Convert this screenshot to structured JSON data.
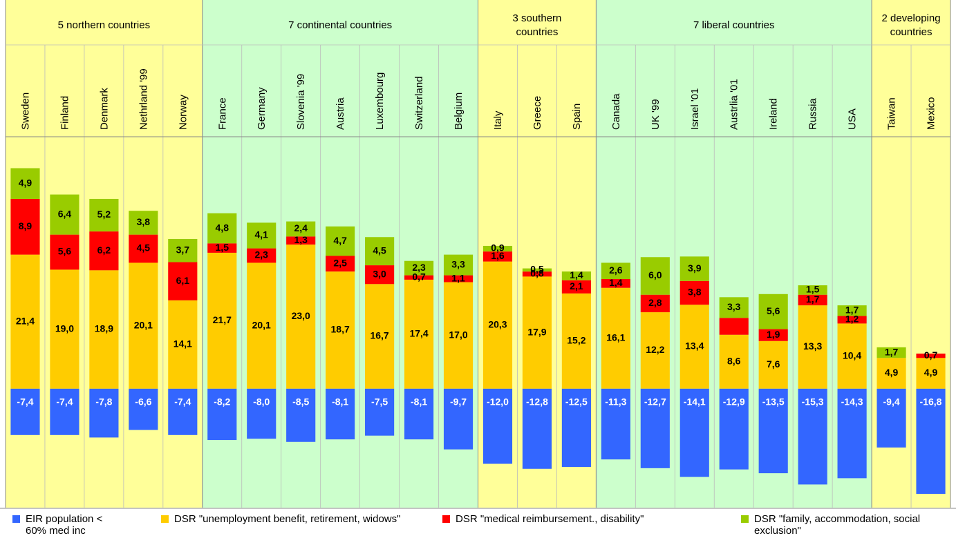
{
  "chart_data": {
    "type": "stacked-bar",
    "categories": [
      "Sweden",
      "Finland",
      "Denmark",
      "Nethrland '99",
      "Norway",
      "France",
      "Germany",
      "Slovenia '99",
      "Austria",
      "Luxembourg",
      "Switzerland",
      "Belgium",
      "Italy",
      "Greece",
      "Spain",
      "Canada",
      "UK '99",
      "Israel '01",
      "Austrlia '01",
      "Ireland",
      "Russia",
      "USA",
      "Taiwan",
      "Mexico"
    ],
    "groups": [
      {
        "label": "5 northern countries",
        "size": 5,
        "color": "#ffff99"
      },
      {
        "label": "7 continental countries",
        "size": 7,
        "color": "#ccffcc"
      },
      {
        "label": "3 southern\ncountries",
        "size": 3,
        "color": "#ffff99"
      },
      {
        "label": "7 liberal countries",
        "size": 7,
        "color": "#ccffcc"
      },
      {
        "label": "2 developing\ncountries",
        "size": 2,
        "color": "#ffff99"
      }
    ],
    "series": [
      {
        "name": "EIR  population < 60% med inc",
        "color": "#3366ff",
        "values": [
          -7.4,
          -7.4,
          -7.8,
          -6.6,
          -7.4,
          -8.2,
          -8.0,
          -8.5,
          -8.1,
          -7.5,
          -8.1,
          -9.7,
          -12.0,
          -12.8,
          -12.5,
          -11.3,
          -12.7,
          -14.1,
          -12.9,
          -13.5,
          -15.3,
          -14.3,
          -9.4,
          -16.8
        ],
        "value_labels": [
          "-7,4",
          "-7,4",
          "-7,8",
          "-6,6",
          "-7,4",
          "-8,2",
          "-8,0",
          "-8,5",
          "-8,1",
          "-7,5",
          "-8,1",
          "-9,7",
          "-12,0",
          "-12,8",
          "-12,5",
          "-11,3",
          "-12,7",
          "-14,1",
          "-12,9",
          "-13,5",
          "-15,3",
          "-14,3",
          "-9,4",
          "-16,8"
        ]
      },
      {
        "name": "DSR \"unemployment benefit, retirement, widows\"",
        "color": "#ffcc00",
        "values": [
          21.4,
          19.0,
          18.9,
          20.1,
          14.1,
          21.7,
          20.1,
          23.0,
          18.7,
          16.7,
          17.4,
          17.0,
          20.3,
          17.9,
          15.2,
          16.1,
          12.2,
          13.4,
          8.6,
          7.6,
          13.3,
          10.4,
          4.9,
          4.9
        ],
        "value_labels": [
          "21,4",
          "19,0",
          "18,9",
          "20,1",
          "14,1",
          "21,7",
          "20,1",
          "23,0",
          "18,7",
          "16,7",
          "17,4",
          "17,0",
          "20,3",
          "17,9",
          "15,2",
          "16,1",
          "12,2",
          "13,4",
          "8,6",
          "7,6",
          "13,3",
          "10,4",
          "4,9",
          "4,9"
        ]
      },
      {
        "name": "DSR \"medical reimbursement., disability\"",
        "color": "#ff0000",
        "values": [
          8.9,
          5.6,
          6.2,
          4.5,
          6.1,
          1.5,
          2.3,
          1.3,
          2.5,
          3.0,
          0.7,
          1.1,
          1.6,
          0.8,
          2.1,
          1.4,
          2.8,
          3.8,
          2.7,
          1.9,
          1.7,
          1.2,
          null,
          0.7
        ],
        "value_labels": [
          "8,9",
          "5,6",
          "6,2",
          "4,5",
          "6,1",
          "1,5",
          "2,3",
          "1,3",
          "2,5",
          "3,0",
          "0,7",
          "1,1",
          "1,6",
          "0,8",
          "2,1",
          "1,4",
          "2,8",
          "3,8",
          null,
          "1,9",
          "1,7",
          "1,2",
          null,
          "0,7"
        ]
      },
      {
        "name": "DSR \"family, accommodation, social exclusion\"",
        "color": "#99cc00",
        "values": [
          4.9,
          6.4,
          5.2,
          3.8,
          3.7,
          4.8,
          4.1,
          2.4,
          4.7,
          4.5,
          2.3,
          3.3,
          0.9,
          0.5,
          1.4,
          2.6,
          6.0,
          3.9,
          3.3,
          5.6,
          1.5,
          1.7,
          1.7,
          null
        ],
        "value_labels": [
          "4,9",
          "6,4",
          "5,2",
          "3,8",
          "3,7",
          "4,8",
          "4,1",
          "2,4",
          "4,7",
          "4,5",
          "2,3",
          "3,3",
          "0,9",
          "0,5",
          "1,4",
          "2,6",
          "6,0",
          "3,9",
          "3,3",
          "5,6",
          "1,5",
          "1,7",
          "1,7",
          null
        ]
      }
    ],
    "ylim": [
      -19,
      40
    ]
  }
}
